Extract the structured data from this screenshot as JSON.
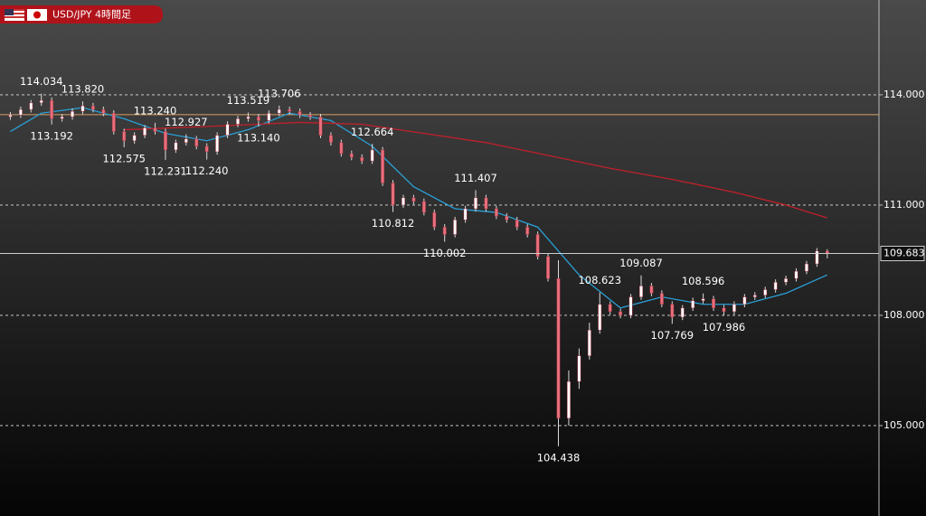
{
  "chart_data": {
    "type": "candlestick",
    "title": "USD/JPY 4時間足",
    "xlim": [
      -1,
      84
    ],
    "ylim": [
      102.54,
      116.58
    ],
    "yticks": [
      {
        "value": 105,
        "label": "105.000"
      },
      {
        "value": 108,
        "label": "108.000"
      },
      {
        "value": 111,
        "label": "111.000"
      },
      {
        "value": 114,
        "label": "114.000"
      }
    ],
    "grid": true,
    "up_color": "#ffffff",
    "down_color": "#e8707c",
    "wick_color": "#dddddd",
    "candles": {
      "open": [
        113.4,
        113.45,
        113.6,
        113.78,
        113.85,
        113.35,
        113.4,
        113.55,
        113.7,
        113.6,
        113.5,
        113.0,
        112.75,
        112.9,
        113.1,
        113.0,
        112.5,
        112.7,
        112.8,
        112.6,
        112.45,
        112.9,
        113.2,
        113.35,
        113.4,
        113.3,
        113.5,
        113.6,
        113.55,
        113.45,
        113.4,
        112.9,
        112.7,
        112.4,
        112.3,
        112.2,
        112.5,
        111.6,
        111.0,
        111.2,
        111.1,
        110.8,
        110.4,
        110.2,
        110.6,
        110.9,
        111.2,
        110.9,
        110.7,
        110.6,
        110.4,
        110.2,
        109.6,
        109.0,
        105.2,
        106.2,
        106.9,
        107.6,
        108.3,
        108.1,
        108.0,
        108.5,
        108.8,
        108.6,
        108.3,
        107.95,
        108.2,
        108.4,
        108.45,
        108.2,
        108.1,
        108.3,
        108.5,
        108.55,
        108.7,
        108.9,
        109.0,
        109.2,
        109.4,
        109.75
      ],
      "high": [
        113.53,
        113.68,
        113.86,
        114.034,
        113.93,
        113.48,
        113.63,
        113.82,
        113.78,
        113.68,
        113.58,
        113.08,
        112.98,
        113.18,
        113.24,
        113.08,
        112.78,
        112.927,
        112.88,
        112.68,
        112.98,
        113.28,
        113.43,
        113.519,
        113.48,
        113.58,
        113.706,
        113.68,
        113.63,
        113.53,
        113.48,
        112.98,
        112.78,
        112.48,
        112.38,
        112.664,
        112.58,
        111.68,
        111.28,
        111.28,
        111.18,
        110.88,
        110.48,
        110.68,
        110.98,
        111.407,
        111.28,
        110.98,
        110.78,
        110.68,
        110.48,
        110.28,
        109.68,
        109.5,
        106.5,
        107.1,
        107.8,
        108.623,
        108.38,
        108.18,
        108.58,
        109.087,
        108.88,
        108.68,
        108.38,
        108.28,
        108.48,
        108.596,
        108.53,
        108.28,
        108.38,
        108.58,
        108.63,
        108.78,
        108.98,
        109.08,
        109.28,
        109.48,
        109.83,
        109.8
      ],
      "low": [
        113.32,
        113.37,
        113.52,
        113.7,
        113.192,
        113.27,
        113.32,
        113.47,
        113.52,
        113.42,
        112.92,
        112.575,
        112.67,
        112.82,
        112.92,
        112.231,
        112.42,
        112.62,
        112.52,
        112.24,
        112.37,
        112.82,
        113.12,
        113.27,
        113.14,
        113.22,
        113.42,
        113.47,
        113.37,
        113.32,
        112.82,
        112.62,
        112.32,
        112.22,
        112.12,
        112.12,
        111.52,
        110.812,
        110.92,
        111.02,
        110.72,
        110.32,
        110.002,
        110.12,
        110.52,
        110.82,
        110.82,
        110.62,
        110.52,
        110.32,
        110.12,
        109.52,
        108.92,
        104.438,
        105.0,
        106.0,
        106.8,
        107.5,
        108.02,
        107.92,
        107.92,
        108.42,
        108.52,
        108.22,
        107.769,
        107.87,
        108.12,
        108.32,
        108.12,
        107.986,
        108.02,
        108.22,
        108.42,
        108.47,
        108.62,
        108.82,
        108.92,
        109.12,
        109.32,
        109.55
      ],
      "close": [
        113.45,
        113.6,
        113.78,
        113.85,
        113.35,
        113.4,
        113.55,
        113.7,
        113.6,
        113.5,
        113.0,
        112.75,
        112.9,
        113.1,
        113.0,
        112.5,
        112.7,
        112.8,
        112.6,
        112.45,
        112.9,
        113.2,
        113.35,
        113.4,
        113.3,
        113.5,
        113.6,
        113.55,
        113.45,
        113.4,
        112.9,
        112.7,
        112.4,
        112.3,
        112.2,
        112.5,
        111.6,
        111.0,
        111.2,
        111.1,
        110.8,
        110.4,
        110.2,
        110.6,
        110.9,
        111.2,
        110.9,
        110.7,
        110.6,
        110.4,
        110.2,
        109.6,
        109.0,
        105.2,
        106.2,
        106.9,
        107.6,
        108.3,
        108.1,
        108.0,
        108.5,
        108.8,
        108.6,
        108.3,
        107.95,
        108.2,
        108.4,
        108.45,
        108.2,
        108.1,
        108.3,
        108.5,
        108.55,
        108.7,
        108.9,
        109.0,
        109.2,
        109.4,
        109.75,
        109.683
      ]
    },
    "series": [
      {
        "color": "#2a9fd6",
        "x": [
          0,
          3,
          7,
          11,
          15,
          19,
          23,
          27,
          31,
          35,
          39,
          43,
          47,
          51,
          55,
          59,
          63,
          67,
          71,
          75,
          79
        ],
        "values": [
          113.0,
          113.5,
          113.65,
          113.35,
          112.95,
          112.75,
          113.05,
          113.5,
          113.3,
          112.6,
          111.5,
          110.9,
          110.8,
          110.4,
          109.1,
          108.2,
          108.5,
          108.3,
          108.3,
          108.6,
          109.1
        ]
      },
      {
        "color": "#c0202a",
        "x": [
          11,
          20,
          28,
          34,
          40,
          46,
          52,
          58,
          64,
          70,
          75,
          79
        ],
        "values": [
          113.05,
          113.15,
          113.25,
          113.2,
          112.95,
          112.7,
          112.35,
          112.0,
          111.7,
          111.35,
          111.0,
          110.65
        ]
      }
    ],
    "reference_lines": [
      {
        "value": 113.46,
        "color": "#d9a066"
      }
    ],
    "annotations": [
      {
        "x": 3,
        "value": 114.034,
        "label": "114.034",
        "position": "above"
      },
      {
        "x": 7,
        "value": 113.82,
        "label": "113.820",
        "position": "above"
      },
      {
        "x": 4,
        "value": 113.192,
        "label": "113.192",
        "position": "below"
      },
      {
        "x": 14,
        "value": 113.24,
        "label": "113.240",
        "position": "above"
      },
      {
        "x": 11,
        "value": 112.575,
        "label": "112.575",
        "position": "below"
      },
      {
        "x": 17,
        "value": 112.927,
        "label": "112.927",
        "position": "above"
      },
      {
        "x": 15,
        "value": 112.231,
        "label": "112.231",
        "position": "below"
      },
      {
        "x": 19,
        "value": 112.24,
        "label": "112.240",
        "position": "below"
      },
      {
        "x": 23,
        "value": 113.519,
        "label": "113.519",
        "position": "above"
      },
      {
        "x": 24,
        "value": 113.14,
        "label": "113.140",
        "position": "below"
      },
      {
        "x": 26,
        "value": 113.706,
        "label": "113.706",
        "position": "above"
      },
      {
        "x": 35,
        "value": 112.664,
        "label": "112.664",
        "position": "above"
      },
      {
        "x": 37,
        "value": 110.812,
        "label": "110.812",
        "position": "below"
      },
      {
        "x": 42,
        "value": 110.002,
        "label": "110.002",
        "position": "below"
      },
      {
        "x": 45,
        "value": 111.407,
        "label": "111.407",
        "position": "above"
      },
      {
        "x": 53,
        "value": 104.438,
        "label": "104.438",
        "position": "below"
      },
      {
        "x": 57,
        "value": 108.623,
        "label": "108.623",
        "position": "above"
      },
      {
        "x": 61,
        "value": 109.087,
        "label": "109.087",
        "position": "above"
      },
      {
        "x": 64,
        "value": 107.769,
        "label": "107.769",
        "position": "below"
      },
      {
        "x": 67,
        "value": 108.596,
        "label": "108.596",
        "position": "above"
      },
      {
        "x": 69,
        "value": 107.986,
        "label": "107.986",
        "position": "below"
      }
    ]
  }
}
